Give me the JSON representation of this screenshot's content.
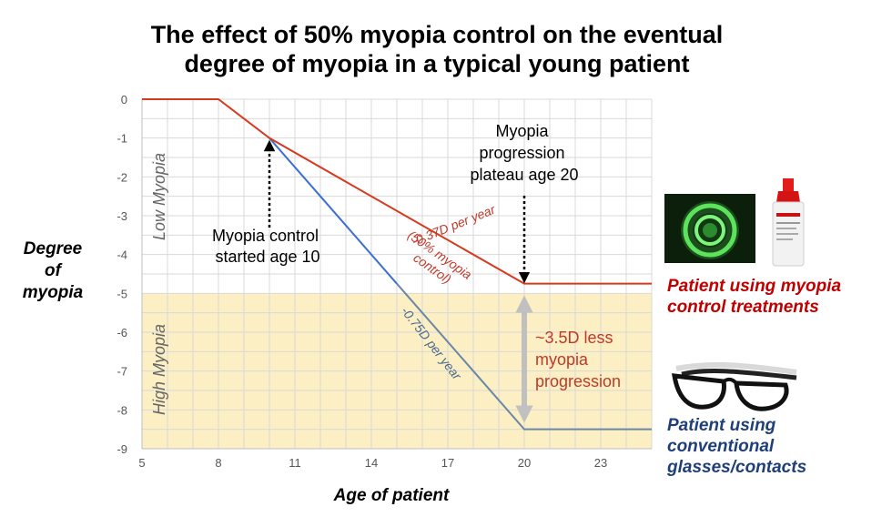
{
  "title": [
    "The effect of 50% myopia control on the eventual",
    "degree of myopia in a typical young patient"
  ],
  "ylabel": [
    "Degree",
    "of",
    "myopia"
  ],
  "xlabel": "Age of patient",
  "legend": {
    "control": [
      "Patient using myopia",
      "control treatments"
    ],
    "conventional": [
      "Patient using",
      "conventional",
      "glasses/contacts"
    ]
  },
  "colors": {
    "control_line": "#d63a1e",
    "conventional_line": "#3c6fd1",
    "conventional_line_late": "#6b87a8",
    "high_myopia_band": "#fbefc3",
    "grid": "#d9d9d9",
    "arrow_gray": "#c0c0c0"
  },
  "chart_data": {
    "type": "line",
    "xlabel": "Age of patient",
    "ylabel": "Degree of myopia",
    "xlim": [
      5,
      25
    ],
    "ylim": [
      -9,
      0
    ],
    "x_ticks": [
      5,
      8,
      11,
      14,
      17,
      20,
      23
    ],
    "y_ticks": [
      0,
      -1,
      -2,
      -3,
      -4,
      -5,
      -6,
      -7,
      -8,
      -9
    ],
    "grid": true,
    "series": [
      {
        "name": "Patient using myopia control treatments",
        "x": [
          5,
          8,
          10,
          20,
          25
        ],
        "y": [
          0,
          0,
          -1,
          -4.75,
          -4.75
        ]
      },
      {
        "name": "Patient using conventional glasses/contacts",
        "x": [
          10,
          20,
          25
        ],
        "y": [
          -1,
          -8.5,
          -8.5
        ]
      }
    ],
    "regions": [
      {
        "label": "Low Myopia",
        "y_from": 0,
        "y_to": -5
      },
      {
        "label": "High Myopia",
        "y_from": -5,
        "y_to": -9
      }
    ],
    "annotations": {
      "control_start": [
        "Myopia control",
        "started age 10"
      ],
      "plateau": [
        "Myopia",
        "progression",
        "plateau age 20"
      ],
      "control_rate": "-0.37D per year",
      "control_rate_note": [
        "(50% myopia",
        "control)"
      ],
      "conventional_rate": "-0.75D per year",
      "difference": [
        "~3.5D less",
        "myopia",
        "progression"
      ]
    }
  }
}
